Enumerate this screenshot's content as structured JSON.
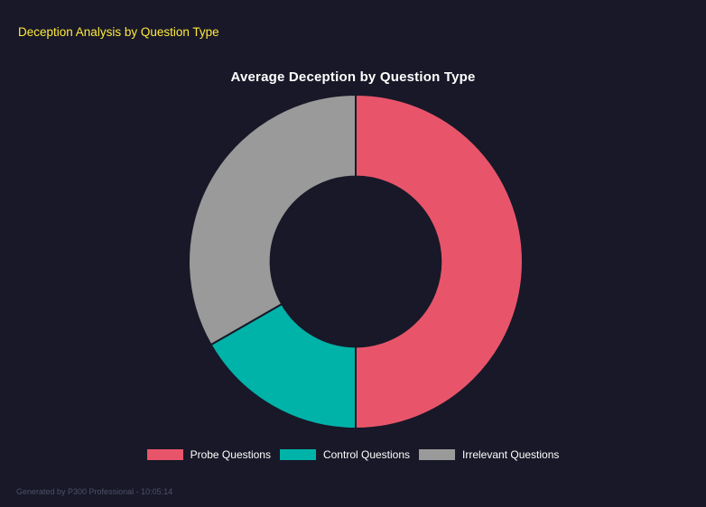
{
  "header": {
    "title": "Deception Analysis by Question Type"
  },
  "footer": {
    "text": "Generated by P300 Professional - 10:05:14"
  },
  "colors": {
    "background": "#181828",
    "accent_yellow": "#ffe93b",
    "title_text": "#ffffff",
    "legend_text": "#ffffff",
    "footer_text": "#50506a"
  },
  "chart_data": {
    "type": "pie",
    "subtype": "donut",
    "title": "Average Deception by Question Type",
    "categories": [
      "Probe Questions",
      "Control Questions",
      "Irrelevant Questions"
    ],
    "values": [
      50,
      16.7,
      33.3
    ],
    "unit": "percent_share_estimated_from_arc_angles",
    "colors": [
      "#e8556a",
      "#00b3a9",
      "#9a9a9a"
    ],
    "start_angle_deg": 0,
    "direction": "clockwise",
    "inner_radius_ratio": 0.51,
    "segment_border_color": "#181828",
    "legend_position": "bottom",
    "grid": false
  }
}
